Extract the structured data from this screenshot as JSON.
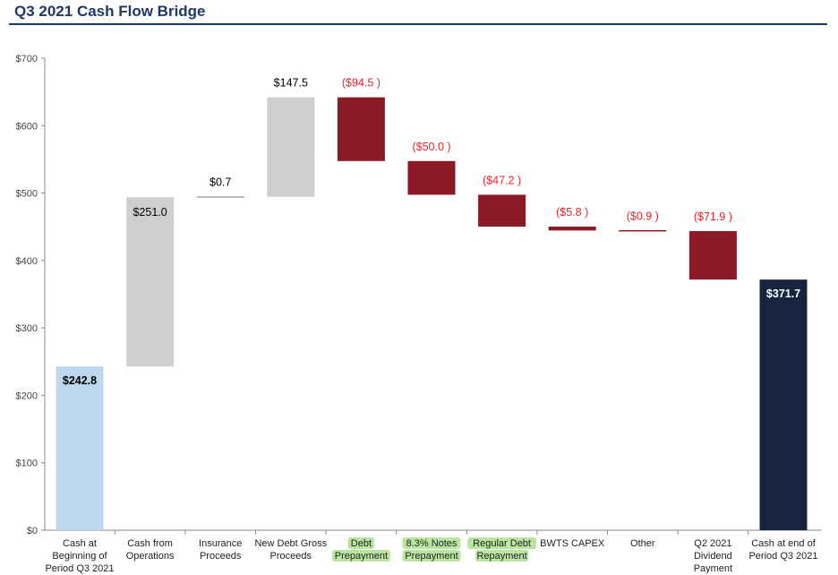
{
  "colors": {
    "title": "#1f3864",
    "start": "#bdd7ee",
    "increase": "#d0cece",
    "decrease": "#8b1a26",
    "end": "#16243f",
    "negative_text": "#e0262d",
    "highlight": "#b9e5a1",
    "axis": "#888888"
  },
  "chart_data": {
    "type": "bar",
    "subtype": "waterfall",
    "title": "Q3 2021 Cash Flow Bridge",
    "ylim": [
      0,
      700
    ],
    "yticks": [
      "$0",
      "$100",
      "$200",
      "$300",
      "$400",
      "$500",
      "$600",
      "$700"
    ],
    "grid": false,
    "categories": [
      {
        "lines": [
          "Cash at",
          "Beginning of",
          "Period Q3 2021"
        ],
        "highlight": false
      },
      {
        "lines": [
          "Cash from",
          "Operations"
        ],
        "highlight": false
      },
      {
        "lines": [
          "Insurance",
          "Proceeds"
        ],
        "highlight": false
      },
      {
        "lines": [
          "New Debt Gross",
          "Proceeds"
        ],
        "highlight": false
      },
      {
        "lines": [
          "Debt",
          "Prepayment"
        ],
        "highlight": true
      },
      {
        "lines": [
          "8.3% Notes",
          "Prepayment"
        ],
        "highlight": true
      },
      {
        "lines": [
          "Regular Debt",
          "Repayment"
        ],
        "highlight": true
      },
      {
        "lines": [
          "BWTS CAPEX"
        ],
        "highlight": false
      },
      {
        "lines": [
          "Other"
        ],
        "highlight": false
      },
      {
        "lines": [
          "Q2 2021",
          "Dividend",
          "Payment"
        ],
        "highlight": false
      },
      {
        "lines": [
          "Cash at end of",
          "Period Q3 2021"
        ],
        "highlight": false
      }
    ],
    "steps": [
      {
        "kind": "start",
        "value": 242.8,
        "label": "$242.8"
      },
      {
        "kind": "increase",
        "value": 251.0,
        "label": "$251.0"
      },
      {
        "kind": "increase",
        "value": 0.7,
        "label": "$0.7"
      },
      {
        "kind": "increase",
        "value": 147.5,
        "label": "$147.5"
      },
      {
        "kind": "decrease",
        "value": -94.5,
        "label": "($94.5 )"
      },
      {
        "kind": "decrease",
        "value": -50.0,
        "label": "($50.0 )"
      },
      {
        "kind": "decrease",
        "value": -47.2,
        "label": "($47.2 )"
      },
      {
        "kind": "decrease",
        "value": -5.8,
        "label": "($5.8 )"
      },
      {
        "kind": "decrease",
        "value": -0.9,
        "label": "($0.9 )"
      },
      {
        "kind": "decrease",
        "value": -71.9,
        "label": "($71.9 )"
      },
      {
        "kind": "end",
        "value": 371.7,
        "label": "$371.7"
      }
    ]
  }
}
